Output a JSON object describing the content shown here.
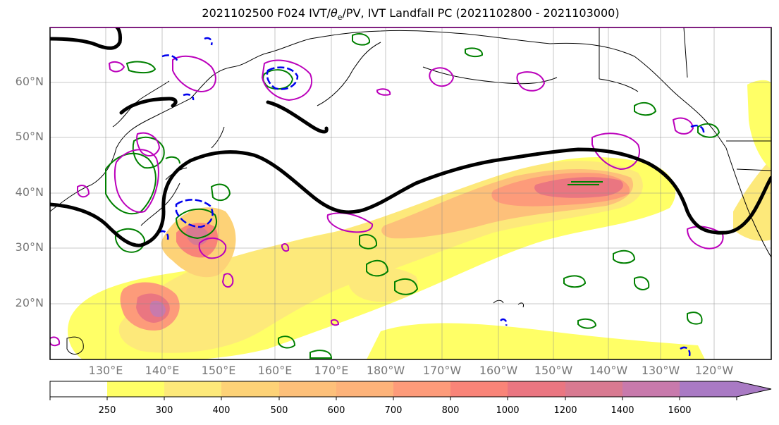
{
  "title": {
    "prefix": "2021102500 F024 IVT/",
    "theta": "θ",
    "theta_sub": "e",
    "suffix": "/PV, IVT Landfall PC (2021102800 - 2021103000)"
  },
  "map": {
    "lat_labels": [
      "60°N",
      "50°N",
      "40°N",
      "30°N",
      "20°N"
    ],
    "lon_labels": [
      "130°E",
      "140°E",
      "150°E",
      "160°E",
      "170°E",
      "180°W",
      "170°W",
      "160°W",
      "150°W",
      "140°W",
      "130°W",
      "120°W"
    ],
    "colors": {
      "jet_contour": "#000000",
      "pv_contour": "#008000",
      "theta_e_contour": "#bb00bb",
      "ivt_pc_contour": "#0000ff",
      "land_boundary": "#000000",
      "gridline": "#888888",
      "label": "#777777"
    }
  },
  "colorbar": {
    "ticks": [
      "250",
      "300",
      "400",
      "500",
      "600",
      "700",
      "800",
      "1000",
      "1200",
      "1400",
      "1600"
    ],
    "colors": [
      "#ffffff",
      "#ffff66",
      "#fde97a",
      "#fdd277",
      "#fdc07a",
      "#fdb37a",
      "#fd9b7a",
      "#f98478",
      "#ea7681",
      "#d87a91",
      "#c87aac",
      "#a97ac4"
    ]
  }
}
